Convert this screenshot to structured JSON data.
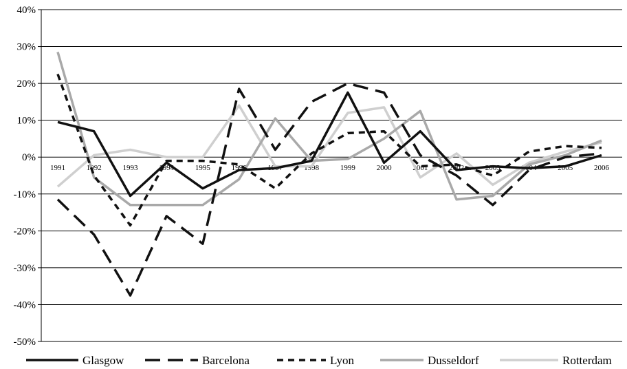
{
  "chart_data": {
    "type": "line",
    "title": "",
    "xlabel": "",
    "ylabel": "",
    "ylim": [
      -50,
      40
    ],
    "ytick_values": [
      40,
      30,
      20,
      10,
      0,
      -10,
      -20,
      -30,
      -40,
      -50
    ],
    "ytick_labels": [
      "40%",
      "30%",
      "20%",
      "10%",
      "0%",
      "-10%",
      "-20%",
      "-30%",
      "-40%",
      "-50%"
    ],
    "categories": [
      "1991",
      "1992",
      "1993",
      "1994",
      "1995",
      "1996",
      "1997",
      "1998",
      "1999",
      "2000",
      "2001",
      "2002",
      "2003",
      "2004",
      "2005",
      "2006"
    ],
    "grid": true,
    "legend_position": "bottom",
    "series": [
      {
        "name": "Glasgow",
        "color": "#111111",
        "style": "solid",
        "values": [
          9.5,
          7,
          -10.5,
          -1.5,
          -8.5,
          -3.5,
          -3,
          -1,
          17.5,
          -1.5,
          7,
          -3.5,
          -2.5,
          -3,
          -2.5,
          0.5
        ]
      },
      {
        "name": "Barcelona",
        "color": "#111111",
        "style": "long-dash",
        "values": [
          -11.5,
          -21,
          -37.5,
          -16,
          -23.5,
          18.5,
          2,
          15,
          20,
          17.5,
          0.5,
          -5,
          -13,
          -3.5,
          0,
          1
        ]
      },
      {
        "name": "Lyon",
        "color": "#111111",
        "style": "short-dash",
        "values": [
          22.5,
          -5,
          -18.5,
          -1,
          -1,
          -2,
          -8.5,
          1,
          6.5,
          7,
          -2.5,
          -2,
          -5,
          1.5,
          3,
          2.5
        ]
      },
      {
        "name": "Dusseldorf",
        "color": "#a9a9a9",
        "style": "solid-gray",
        "values": [
          28.5,
          -5.5,
          -13,
          -13,
          -13,
          -6,
          10.5,
          -1,
          -0.5,
          5,
          12.5,
          -11.5,
          -10.5,
          -2,
          0.5,
          4.5
        ]
      },
      {
        "name": "Rotterdam",
        "color": "#cfcfcf",
        "style": "light-gray",
        "values": [
          -8,
          0.5,
          2,
          0,
          0,
          14,
          -2.5,
          -2.5,
          12,
          13.5,
          -5.5,
          1,
          -7.5,
          -1.5,
          1.5,
          4
        ]
      }
    ]
  }
}
